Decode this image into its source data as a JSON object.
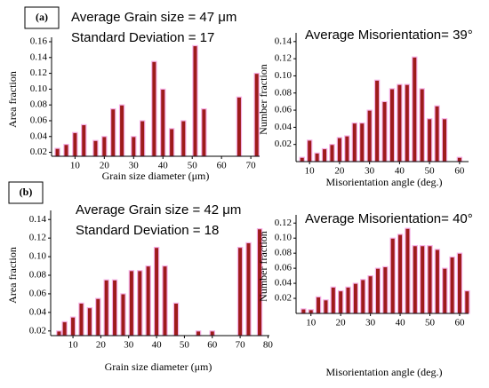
{
  "chart_data": [
    {
      "type": "bar",
      "label": "(a)",
      "annotations": [
        "Average Grain size = 47 μm",
        "Standard Deviation = 17"
      ],
      "xlabel": "Grain size diameter (μm)",
      "ylabel": "Area fraction",
      "color": "#9e1b1b",
      "x": [
        4,
        7,
        10,
        13,
        17,
        20,
        23,
        26,
        30,
        33,
        37,
        40,
        43,
        47,
        51,
        54,
        66,
        72
      ],
      "values": [
        0.025,
        0.03,
        0.045,
        0.055,
        0.035,
        0.04,
        0.075,
        0.08,
        0.04,
        0.06,
        0.135,
        0.1,
        0.05,
        0.06,
        0.155,
        0.075,
        0.09,
        0.12
      ],
      "xlim": [
        2,
        73
      ],
      "xticks": [
        10,
        20,
        30,
        40,
        50,
        60,
        70
      ],
      "ylim": [
        0.015,
        0.16
      ],
      "yticks": [
        0.02,
        0.04,
        0.06,
        0.08,
        {
          "value": 0.1,
          "label": "0.10"
        },
        0.12,
        0.14,
        0.16
      ]
    },
    {
      "type": "bar",
      "annotations": [
        "Average Misorientation= 39°"
      ],
      "xlabel": "Misorientation angle (deg.)",
      "ylabel": "Number fraction",
      "color": "#9e1b1b",
      "x": [
        7.5,
        10,
        12.5,
        15,
        17.5,
        20,
        22.5,
        25,
        27.5,
        30,
        32.5,
        35,
        37.5,
        40,
        42.5,
        45,
        47.5,
        50,
        52.5,
        55,
        60
      ],
      "values": [
        0.005,
        0.025,
        0.01,
        0.015,
        0.02,
        0.028,
        0.03,
        0.045,
        0.045,
        0.06,
        0.095,
        0.07,
        0.085,
        0.09,
        0.09,
        0.122,
        0.085,
        0.05,
        0.065,
        0.05,
        0.005
      ],
      "xlim": [
        5.5,
        63
      ],
      "xticks": [
        10,
        20,
        30,
        40,
        50,
        60
      ],
      "ylim": [
        0,
        0.145
      ],
      "yticks": [
        0.02,
        0.04,
        0.06,
        0.08,
        {
          "value": 0.1,
          "label": "0.10"
        },
        0.12,
        0.14
      ]
    },
    {
      "type": "bar",
      "label": "(b)",
      "annotations": [
        "Average Grain size =  42 μm",
        "Standard Deviation = 18"
      ],
      "xlabel": "Grain size diameter (μm)",
      "ylabel": "Area fraction",
      "color": "#9e1b1b",
      "x": [
        5,
        7,
        10,
        13,
        16,
        19,
        22,
        25,
        28,
        31,
        34,
        37,
        40,
        43,
        47,
        55,
        60,
        70,
        73,
        77
      ],
      "values": [
        0.02,
        0.03,
        0.035,
        0.05,
        0.045,
        0.055,
        0.075,
        0.075,
        0.06,
        0.085,
        0.085,
        0.09,
        0.11,
        0.09,
        0.05,
        0.02,
        0.02,
        0.11,
        0.115,
        0.13
      ],
      "xlim": [
        2,
        80.5
      ],
      "xticks": [
        10,
        20,
        30,
        40,
        50,
        60,
        70,
        80
      ],
      "ylim": [
        0.015,
        0.145
      ],
      "yticks": [
        0.02,
        0.04,
        0.06,
        0.08,
        {
          "value": 0.1,
          "label": "0.10"
        },
        0.12,
        0.14
      ]
    },
    {
      "type": "bar",
      "annotations": [
        "Average Misorientation= 40°"
      ],
      "xlabel": "Misorientation angle (deg.)",
      "ylabel": "Number fraction",
      "color": "#9e1b1b",
      "x": [
        7.5,
        10,
        12.5,
        15,
        17.5,
        20,
        22.5,
        25,
        27.5,
        30,
        32.5,
        35,
        37.5,
        40,
        42.5,
        45,
        47.5,
        50,
        52.5,
        55,
        57.5,
        60,
        62.5
      ],
      "values": [
        0.006,
        0.005,
        0.022,
        0.018,
        0.035,
        0.03,
        0.035,
        0.04,
        0.045,
        0.05,
        0.06,
        0.062,
        0.1,
        0.105,
        0.113,
        0.09,
        0.09,
        0.09,
        0.085,
        0.06,
        0.075,
        0.08,
        0.03
      ],
      "xlim": [
        5,
        63
      ],
      "xticks": [
        10,
        20,
        30,
        40,
        50,
        60
      ],
      "ylim": [
        0,
        0.125
      ],
      "yticks": [
        0.02,
        0.04,
        0.06,
        0.08,
        {
          "value": 0.1,
          "label": "0.10"
        },
        0.12
      ]
    }
  ]
}
